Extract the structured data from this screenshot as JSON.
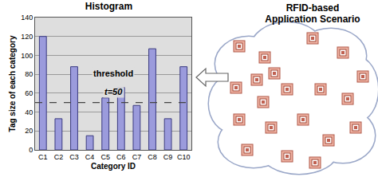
{
  "chart_data": {
    "type": "bar",
    "title": "Histogram",
    "x_label": "Category ID",
    "y_label": "Tag size of each category",
    "categories": [
      "C1",
      "C2",
      "C3",
      "C4",
      "C5",
      "C6",
      "C7",
      "C8",
      "C9",
      "C10"
    ],
    "values": [
      120,
      33,
      88,
      15,
      55,
      66,
      47,
      107,
      33,
      88
    ],
    "color": "#9b9bdc",
    "ylim": [
      0,
      140
    ],
    "yticks": [
      0,
      20,
      40,
      60,
      80,
      100,
      120,
      140
    ],
    "grid": true,
    "threshold": {
      "value": 50,
      "labels": [
        "threshold",
        "t=50"
      ]
    }
  },
  "scenario": {
    "title_lines": [
      "RFID-based",
      "Application Scenario"
    ]
  }
}
